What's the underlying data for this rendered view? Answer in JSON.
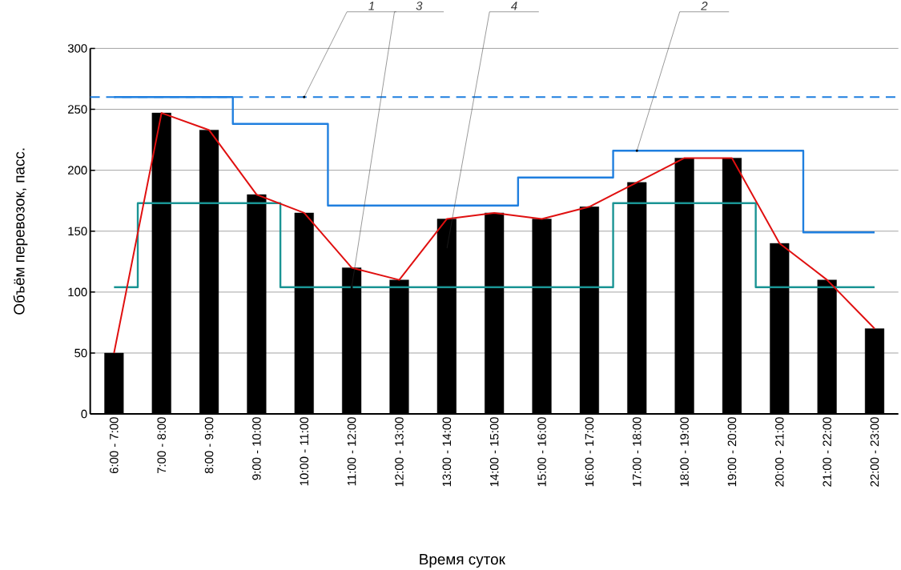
{
  "chart_data": {
    "type": "bar",
    "ylabel": "Объём перевозок, пасс.",
    "xlabel": "Время суток",
    "categories": [
      "6:00 - 7:00",
      "7:00 - 8:00",
      "8:00 - 9:00",
      "9:00 - 10:00",
      "10:00 - 11:00",
      "11:00 - 12:00",
      "12:00 - 13:00",
      "13:00 - 14:00",
      "14:00 - 15:00",
      "15:00 - 16:00",
      "16:00 - 17:00",
      "17:00 - 18:00",
      "18:00 - 19:00",
      "19:00 - 20:00",
      "20:00 - 21:00",
      "21:00 - 22:00",
      "22:00 - 23:00"
    ],
    "series": [
      {
        "type": "step",
        "color": "#1f7fdf",
        "values": [
          260,
          260,
          260,
          238,
          238,
          171,
          171,
          171,
          171,
          194,
          194,
          216,
          216,
          216,
          216,
          149,
          149
        ]
      },
      {
        "color": "#000000",
        "values": [
          50,
          247,
          233,
          180,
          165,
          120,
          110,
          160,
          165,
          160,
          170,
          190,
          210,
          210,
          140,
          110,
          70
        ]
      },
      {
        "type": "step",
        "color": "#1a9494",
        "values": [
          104,
          173,
          173,
          173,
          104,
          104,
          104,
          104,
          104,
          104,
          104,
          173,
          173,
          173,
          104,
          104,
          104
        ]
      },
      {
        "type": "line",
        "color": "#e01010",
        "values": [
          50,
          247,
          233,
          180,
          165,
          120,
          110,
          160,
          165,
          160,
          170,
          190,
          210,
          210,
          140,
          110,
          70
        ]
      }
    ],
    "ref_lines": [
      {
        "axis": "y",
        "value": 260,
        "color": "#1f7fdf",
        "line_style": "dashed"
      }
    ],
    "annotations": [
      {
        "text": "1",
        "x": "10:00 - 11:00",
        "y": 260
      },
      {
        "text": "3",
        "x": "11:00 - 12:00",
        "y": 104
      },
      {
        "text": "4",
        "x": "13:00 - 14:00",
        "y": 135
      },
      {
        "text": "2",
        "x": "17:00 - 18:00",
        "y": 216
      }
    ],
    "ylim": [
      0,
      300
    ],
    "yticks": [
      0,
      50,
      100,
      150,
      200,
      250,
      300
    ],
    "grid": "y"
  }
}
